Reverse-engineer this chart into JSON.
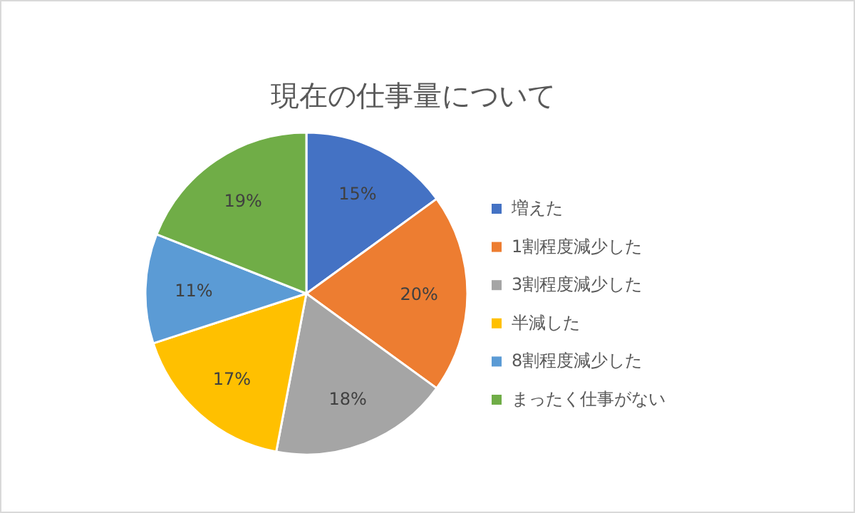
{
  "chart_data": {
    "type": "pie",
    "title": "現在の仕事量について",
    "categories": [
      "増えた",
      "1割程度減少した",
      "3割程度減少した",
      "半減した",
      "8割程度減少した",
      "まったく仕事がない"
    ],
    "values": [
      15,
      20,
      18,
      17,
      11,
      19
    ],
    "colors": [
      "#4472c4",
      "#ed7d31",
      "#a5a5a5",
      "#ffc000",
      "#5b9bd5",
      "#70ad47"
    ],
    "value_labels": [
      "15%",
      "20%",
      "18%",
      "17%",
      "11%",
      "19%"
    ],
    "legend": "right"
  }
}
